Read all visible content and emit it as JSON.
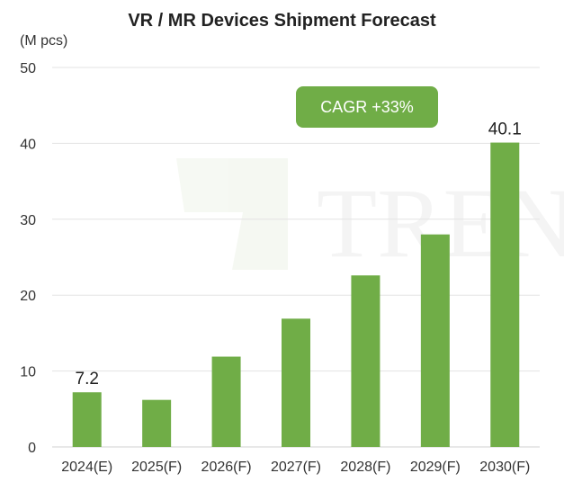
{
  "chart_data": {
    "type": "bar",
    "title": "VR / MR Devices Shipment Forecast",
    "ylabel": "(M pcs)",
    "xlabel": "",
    "categories": [
      "2024(E)",
      "2025(F)",
      "2026(F)",
      "2027(F)",
      "2028(F)",
      "2029(F)",
      "2030(F)"
    ],
    "values": [
      7.2,
      6.2,
      11.9,
      16.9,
      22.6,
      28.0,
      40.1
    ],
    "data_labels": {
      "0": "7.2",
      "6": "40.1"
    },
    "ylim": [
      0,
      50
    ],
    "yticks": [
      0,
      10,
      20,
      30,
      40,
      50
    ],
    "grid": true,
    "bar_color": "#70ad47",
    "annotation": "CAGR +33%",
    "annotation_color": "#70ad47"
  },
  "watermark": "TREN"
}
